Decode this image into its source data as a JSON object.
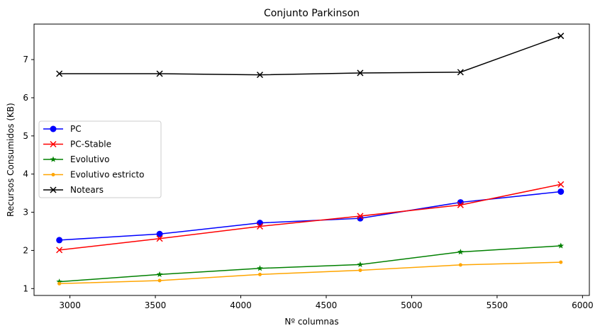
{
  "chart_data": {
    "type": "line",
    "title": "Conjunto  Parkinson",
    "xlabel": "Nº columnas",
    "ylabel": "Recursos Consumidos (KB)",
    "xlim": [
      2790,
      6040
    ],
    "ylim": [
      0.82,
      7.93
    ],
    "xticks": [
      3000,
      3500,
      4000,
      4500,
      5000,
      5500,
      6000
    ],
    "yticks": [
      1,
      2,
      3,
      4,
      5,
      6,
      7
    ],
    "grid": false,
    "legend_position": "center-left",
    "x": [
      2938,
      3525,
      4112,
      4699,
      5286,
      5873
    ],
    "series": [
      {
        "name": "PC",
        "color": "#0000ff",
        "marker": "circle",
        "values": [
          2.27,
          2.43,
          2.72,
          2.84,
          3.26,
          3.54
        ]
      },
      {
        "name": "PC-Stable",
        "color": "#ff0000",
        "marker": "x",
        "values": [
          2.01,
          2.31,
          2.63,
          2.9,
          3.19,
          3.73
        ]
      },
      {
        "name": "Evolutivo",
        "color": "#008000",
        "marker": "star",
        "values": [
          1.18,
          1.37,
          1.53,
          1.63,
          1.96,
          2.12
        ]
      },
      {
        "name": "Evolutivo estricto",
        "color": "#ffa500",
        "marker": "dot",
        "values": [
          1.13,
          1.21,
          1.37,
          1.48,
          1.62,
          1.69
        ]
      },
      {
        "name": "Notears",
        "color": "#000000",
        "marker": "x",
        "values": [
          6.63,
          6.63,
          6.6,
          6.65,
          6.67,
          7.62
        ]
      }
    ]
  }
}
